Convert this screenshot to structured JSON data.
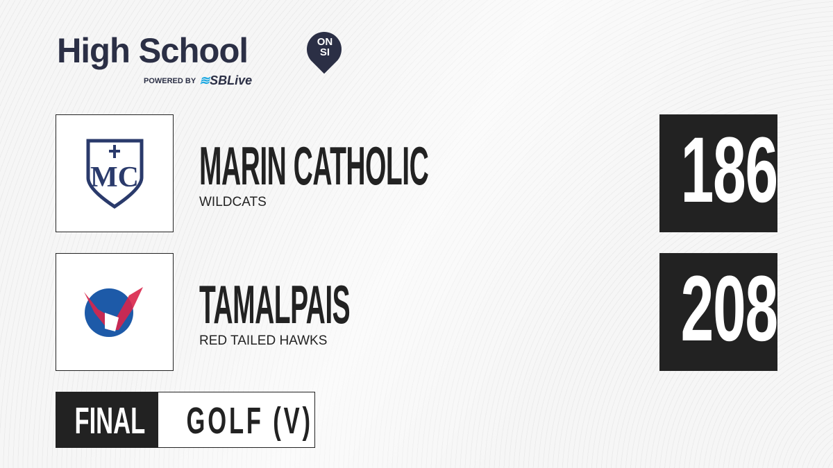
{
  "brand": {
    "title": "High School",
    "pin_text": "ON SI",
    "powered_by": "POWERED BY",
    "partner": "SBLive",
    "partner_accent": "#1fa9e1",
    "color": "#2b2f45"
  },
  "teams": [
    {
      "name": "MARIN CATHOLIC",
      "mascot": "WILDCATS",
      "score": "186",
      "logo": "Marin Catholic MC shield",
      "logo_color": "#2a3a6b"
    },
    {
      "name": "TAMALPAIS",
      "mascot": "RED TAILED HAWKS",
      "score": "208",
      "logo": "Tamalpais Red Tailed Hawks",
      "logo_text": "TAMALPAIS RED TAILED HAWKS",
      "logo_color": "#1d5aa8",
      "logo_accent": "#d9254a"
    }
  ],
  "status": {
    "label": "FINAL",
    "sport": "GOLF (V)"
  }
}
